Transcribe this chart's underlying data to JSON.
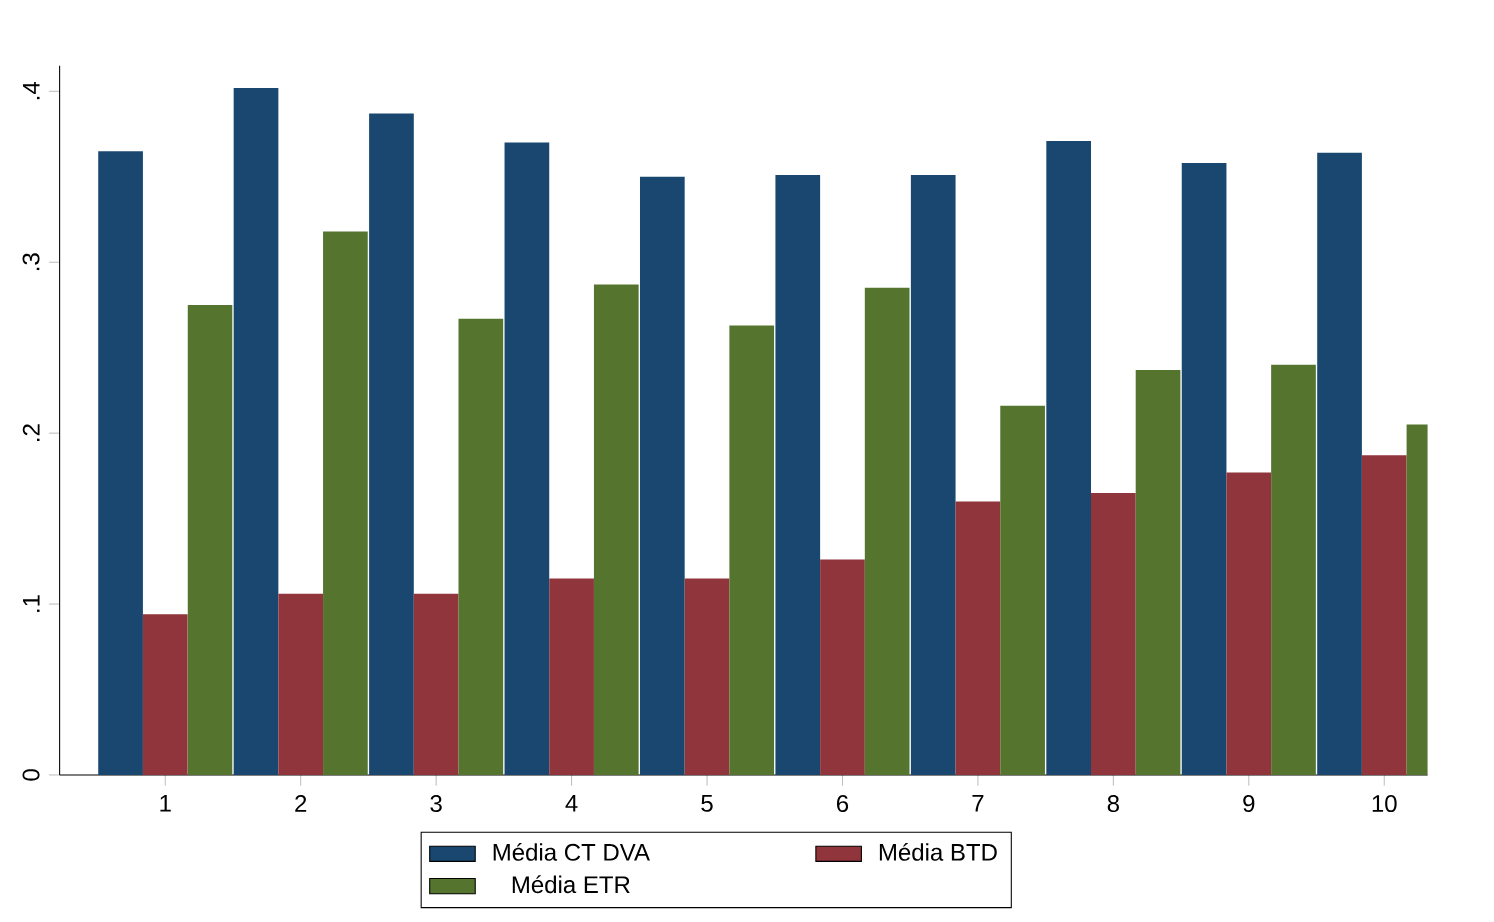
{
  "chart_data": {
    "type": "bar",
    "categories": [
      "1",
      "2",
      "3",
      "4",
      "5",
      "6",
      "7",
      "8",
      "9",
      "10"
    ],
    "series": [
      {
        "name": "Média CT DVA",
        "color": "#1a476f",
        "values": [
          0.365,
          0.402,
          0.387,
          0.37,
          0.35,
          0.351,
          0.351,
          0.371,
          0.358,
          0.364
        ]
      },
      {
        "name": "Média BTD",
        "color": "#90353b",
        "values": [
          0.094,
          0.106,
          0.106,
          0.115,
          0.115,
          0.126,
          0.16,
          0.165,
          0.177,
          0.187
        ]
      },
      {
        "name": "Média ETR",
        "color": "#55752f",
        "values": [
          0.275,
          0.318,
          0.267,
          0.287,
          0.263,
          0.285,
          0.216,
          0.237,
          0.24,
          0.205
        ]
      }
    ],
    "ylim": [
      0,
      0.415
    ],
    "yticks": [
      0,
      {
        "value": 0.1,
        "label": ".1"
      },
      {
        "value": 0.2,
        "label": ".2"
      },
      {
        "value": 0.3,
        "label": ".3"
      },
      {
        "value": 0.4,
        "label": ".4"
      }
    ],
    "legend": "bottom",
    "grid": false
  }
}
